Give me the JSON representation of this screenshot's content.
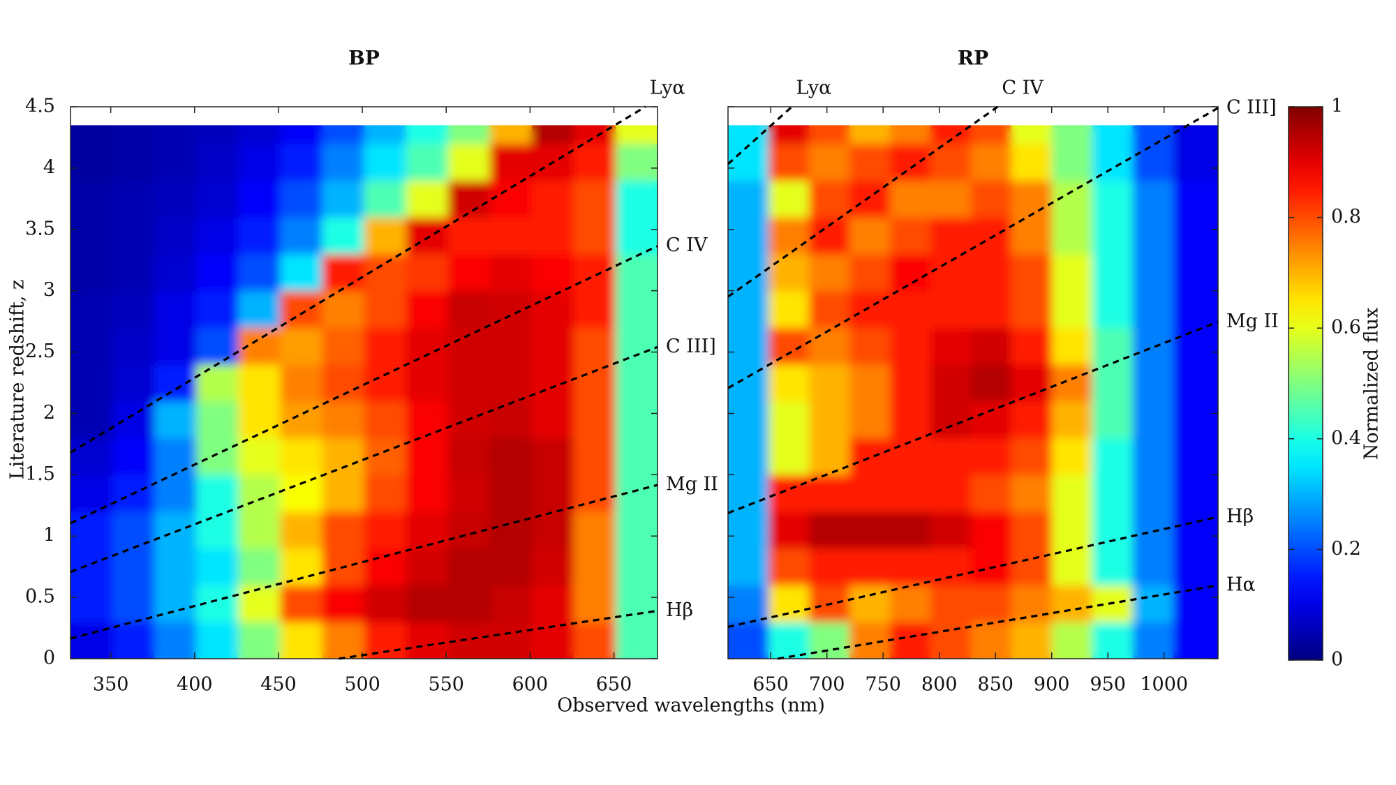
{
  "chart_data": [
    {
      "type": "heatmap",
      "title": "BP",
      "x_edges": [
        326,
        351,
        376,
        401,
        426,
        451,
        476,
        501,
        526,
        551,
        576,
        601,
        626,
        651,
        676
      ],
      "y_edges": [
        0,
        0.3,
        0.6,
        0.9,
        1.2,
        1.5,
        1.8,
        2.1,
        2.4,
        2.7,
        3.0,
        3.3,
        3.6,
        3.9,
        4.2,
        4.35
      ],
      "z": [
        [
          0.1,
          0.15,
          0.25,
          0.35,
          0.5,
          0.65,
          0.75,
          0.85,
          0.9,
          0.92,
          0.92,
          0.9,
          0.8,
          0.45
        ],
        [
          0.15,
          0.2,
          0.3,
          0.4,
          0.6,
          0.8,
          0.88,
          0.92,
          0.95,
          0.95,
          0.93,
          0.9,
          0.75,
          0.45
        ],
        [
          0.15,
          0.2,
          0.3,
          0.35,
          0.5,
          0.65,
          0.8,
          0.88,
          0.92,
          0.95,
          0.95,
          0.92,
          0.75,
          0.45
        ],
        [
          0.15,
          0.2,
          0.3,
          0.4,
          0.55,
          0.7,
          0.8,
          0.85,
          0.9,
          0.93,
          0.95,
          0.93,
          0.75,
          0.45
        ],
        [
          0.1,
          0.15,
          0.25,
          0.4,
          0.55,
          0.62,
          0.7,
          0.8,
          0.88,
          0.92,
          0.95,
          0.93,
          0.8,
          0.45
        ],
        [
          0.08,
          0.12,
          0.25,
          0.5,
          0.6,
          0.65,
          0.7,
          0.78,
          0.88,
          0.93,
          0.95,
          0.93,
          0.8,
          0.45
        ],
        [
          0.05,
          0.1,
          0.3,
          0.5,
          0.65,
          0.72,
          0.75,
          0.8,
          0.88,
          0.92,
          0.93,
          0.9,
          0.8,
          0.45
        ],
        [
          0.05,
          0.08,
          0.15,
          0.55,
          0.65,
          0.75,
          0.8,
          0.85,
          0.9,
          0.92,
          0.92,
          0.9,
          0.8,
          0.45
        ],
        [
          0.05,
          0.07,
          0.1,
          0.2,
          0.75,
          0.72,
          0.78,
          0.85,
          0.9,
          0.92,
          0.92,
          0.9,
          0.8,
          0.45
        ],
        [
          0.05,
          0.06,
          0.1,
          0.15,
          0.3,
          0.8,
          0.75,
          0.8,
          0.88,
          0.93,
          0.92,
          0.9,
          0.85,
          0.45
        ],
        [
          0.04,
          0.05,
          0.08,
          0.12,
          0.2,
          0.35,
          0.85,
          0.8,
          0.82,
          0.88,
          0.9,
          0.88,
          0.85,
          0.45
        ],
        [
          0.04,
          0.05,
          0.07,
          0.1,
          0.15,
          0.25,
          0.4,
          0.7,
          0.9,
          0.85,
          0.85,
          0.85,
          0.8,
          0.4
        ],
        [
          0.04,
          0.05,
          0.06,
          0.08,
          0.12,
          0.2,
          0.3,
          0.45,
          0.6,
          0.92,
          0.88,
          0.85,
          0.8,
          0.4
        ],
        [
          0.03,
          0.04,
          0.05,
          0.07,
          0.1,
          0.15,
          0.25,
          0.35,
          0.45,
          0.6,
          0.9,
          0.9,
          0.85,
          0.5
        ],
        [
          0.03,
          0.04,
          0.05,
          0.06,
          0.08,
          0.12,
          0.2,
          0.3,
          0.4,
          0.5,
          0.7,
          0.95,
          0.9,
          0.6
        ]
      ],
      "xlim": [
        326,
        676
      ],
      "xticks": [
        350,
        400,
        450,
        500,
        550,
        600,
        650
      ],
      "ylim": [
        0,
        4.5
      ],
      "yticks": [
        0,
        0.5,
        1,
        1.5,
        2,
        2.5,
        3,
        3.5,
        4,
        4.5
      ],
      "show_ytick_labels": true,
      "lines": [
        {
          "label": "Lyα",
          "rest": 121.6
        },
        {
          "label": "C IV",
          "rest": 154.9
        },
        {
          "label": "C III]",
          "rest": 190.9
        },
        {
          "label": "Mg II",
          "rest": 279.8
        },
        {
          "label": "Hβ",
          "rest": 486.1
        }
      ]
    },
    {
      "type": "heatmap",
      "title": "RP",
      "x_edges": [
        612,
        648,
        684,
        720,
        756,
        792,
        828,
        864,
        900,
        936,
        972,
        1008,
        1048
      ],
      "y_edges": [
        0,
        0.3,
        0.6,
        0.9,
        1.2,
        1.5,
        1.8,
        2.1,
        2.4,
        2.7,
        3.0,
        3.3,
        3.6,
        3.9,
        4.2,
        4.35
      ],
      "z": [
        [
          0.2,
          0.4,
          0.5,
          0.75,
          0.85,
          0.8,
          0.75,
          0.7,
          0.55,
          0.4,
          0.25,
          0.12
        ],
        [
          0.25,
          0.65,
          0.8,
          0.7,
          0.75,
          0.8,
          0.8,
          0.75,
          0.7,
          0.6,
          0.3,
          0.12
        ],
        [
          0.3,
          0.8,
          0.85,
          0.85,
          0.85,
          0.85,
          0.88,
          0.8,
          0.6,
          0.4,
          0.25,
          0.12
        ],
        [
          0.3,
          0.9,
          0.95,
          0.95,
          0.95,
          0.92,
          0.88,
          0.8,
          0.6,
          0.4,
          0.25,
          0.12
        ],
        [
          0.3,
          0.85,
          0.85,
          0.85,
          0.85,
          0.85,
          0.8,
          0.75,
          0.6,
          0.4,
          0.25,
          0.12
        ],
        [
          0.3,
          0.6,
          0.7,
          0.85,
          0.85,
          0.85,
          0.85,
          0.8,
          0.65,
          0.4,
          0.25,
          0.12
        ],
        [
          0.3,
          0.6,
          0.7,
          0.75,
          0.85,
          0.92,
          0.9,
          0.85,
          0.7,
          0.45,
          0.25,
          0.12
        ],
        [
          0.3,
          0.65,
          0.7,
          0.75,
          0.85,
          0.92,
          0.95,
          0.9,
          0.75,
          0.45,
          0.25,
          0.12
        ],
        [
          0.3,
          0.8,
          0.75,
          0.8,
          0.85,
          0.9,
          0.92,
          0.85,
          0.65,
          0.45,
          0.25,
          0.12
        ],
        [
          0.3,
          0.65,
          0.8,
          0.85,
          0.85,
          0.85,
          0.85,
          0.8,
          0.6,
          0.4,
          0.25,
          0.12
        ],
        [
          0.3,
          0.7,
          0.75,
          0.8,
          0.88,
          0.85,
          0.85,
          0.8,
          0.6,
          0.4,
          0.25,
          0.12
        ],
        [
          0.3,
          0.75,
          0.85,
          0.75,
          0.8,
          0.85,
          0.85,
          0.75,
          0.55,
          0.4,
          0.25,
          0.12
        ],
        [
          0.3,
          0.6,
          0.8,
          0.85,
          0.75,
          0.75,
          0.8,
          0.75,
          0.55,
          0.4,
          0.25,
          0.12
        ],
        [
          0.35,
          0.8,
          0.75,
          0.8,
          0.85,
          0.8,
          0.75,
          0.65,
          0.5,
          0.35,
          0.2,
          0.1
        ],
        [
          0.35,
          0.9,
          0.8,
          0.7,
          0.75,
          0.85,
          0.8,
          0.6,
          0.5,
          0.35,
          0.2,
          0.1
        ]
      ],
      "xlim": [
        612,
        1048
      ],
      "xticks": [
        650,
        700,
        750,
        800,
        850,
        900,
        950,
        1000
      ],
      "ylim": [
        0,
        4.5
      ],
      "yticks": [
        0,
        0.5,
        1,
        1.5,
        2,
        2.5,
        3,
        3.5,
        4,
        4.5
      ],
      "show_ytick_labels": false,
      "lines": [
        {
          "label": "Lyα",
          "rest": 121.6
        },
        {
          "label": "C IV",
          "rest": 154.9
        },
        {
          "label": "C III]",
          "rest": 190.9
        },
        {
          "label": "Mg II",
          "rest": 279.8
        },
        {
          "label": "Hβ",
          "rest": 486.1
        },
        {
          "label": "Hα",
          "rest": 656.3
        }
      ]
    }
  ],
  "xlabel": "Observed wavelengths (nm)",
  "ylabel": "Literature redshift, z",
  "colorbar": {
    "label": "Normalized flux",
    "lim": [
      0,
      1
    ],
    "ticks": [
      0,
      0.2,
      0.4,
      0.6,
      0.8,
      1
    ],
    "colormap": "jet"
  }
}
